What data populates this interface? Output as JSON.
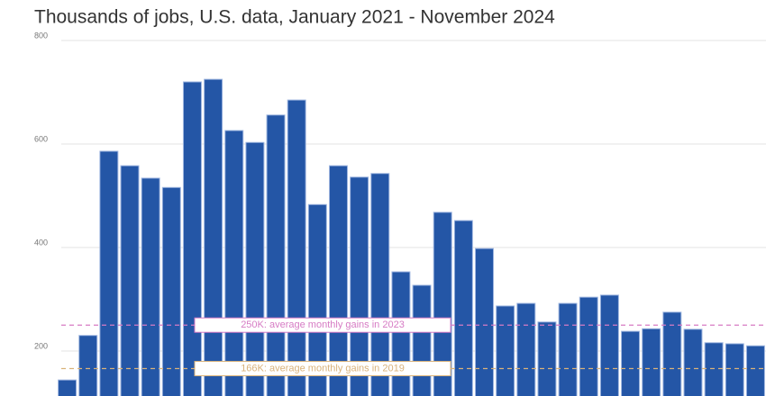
{
  "chart_data": {
    "type": "bar",
    "title": "Thousands of jobs, U.S. data, January 2021 - November 2024",
    "categories": [
      null,
      null,
      null,
      null,
      null,
      null,
      null,
      null,
      null,
      null,
      null,
      null,
      null,
      null,
      null,
      null,
      null,
      null,
      null,
      null,
      null,
      null,
      null,
      null,
      null,
      null,
      null,
      null,
      null,
      null,
      null,
      null,
      null,
      null
    ],
    "values": [
      144,
      230,
      586,
      558,
      534,
      516,
      720,
      725,
      626,
      603,
      656,
      685,
      483,
      558,
      536,
      543,
      353,
      327,
      468,
      452,
      398,
      287,
      292,
      256,
      292,
      304,
      308,
      238,
      243,
      275,
      242,
      216,
      214,
      210
    ],
    "color": "#2456a6",
    "ylim": [
      113,
      800
    ],
    "yticks": [
      200,
      400,
      600,
      800
    ],
    "grid": true,
    "reference_lines": [
      {
        "value": 250,
        "label": "250K: average monthly gains in 2023",
        "color": "#d67bc4"
      },
      {
        "value": 166,
        "label": "166K: average monthly gains in 2019",
        "color": "#d9b27a"
      }
    ]
  }
}
